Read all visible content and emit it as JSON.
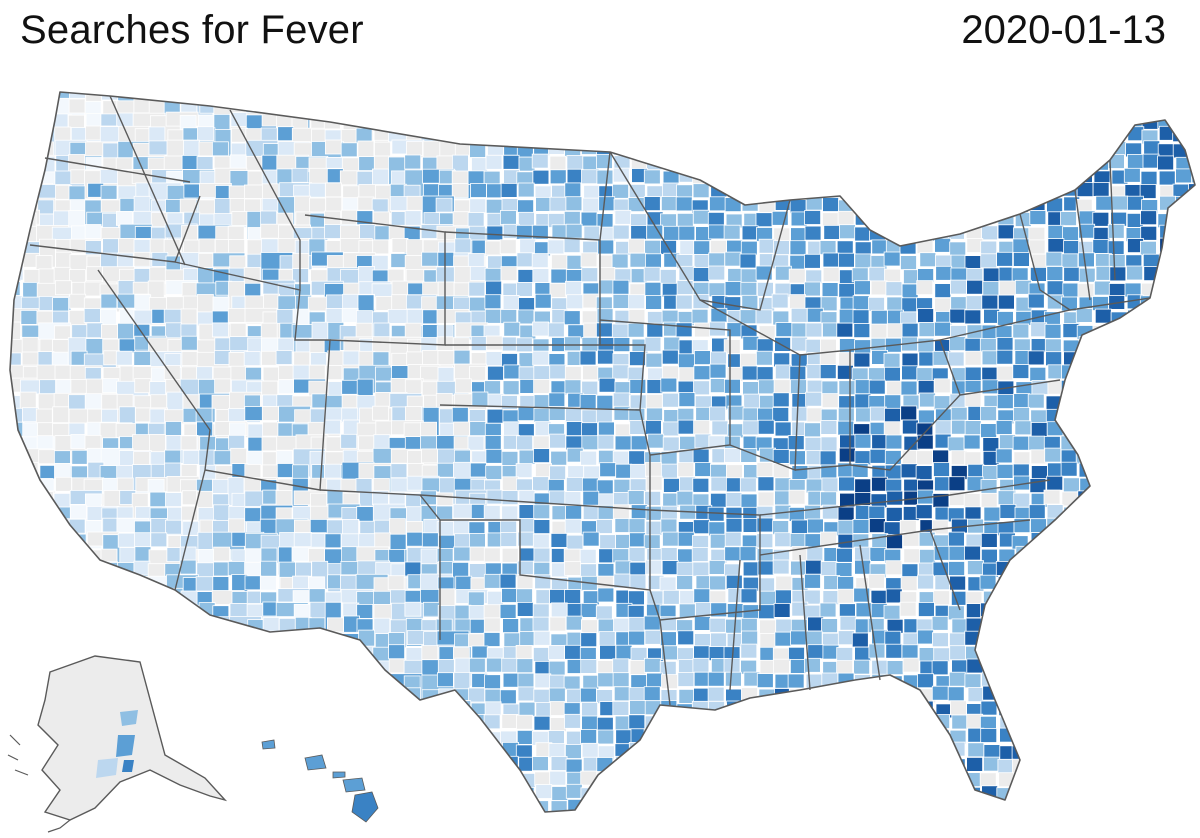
{
  "header": {
    "title": "Searches for Fever",
    "date": "2020-01-13"
  },
  "colors": {
    "no_data": "#ececec",
    "scale": [
      "#f3f8fd",
      "#dbe9f7",
      "#bcd7ef",
      "#8fbfe3",
      "#5c9fd5",
      "#3a82c4",
      "#1d5fa8",
      "#0b3f86"
    ],
    "border": "#5a5a5a"
  }
}
